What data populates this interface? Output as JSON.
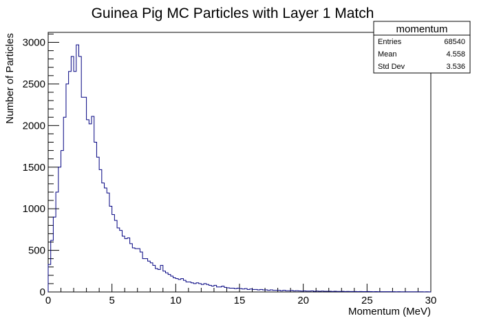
{
  "chart_data": {
    "type": "histogram",
    "title": "Guinea Pig MC Particles with Layer 1 Match",
    "xlabel": "Momentum (MeV)",
    "ylabel": "Number of Particles",
    "xlim": [
      0,
      30
    ],
    "ylim": [
      0,
      3120
    ],
    "bin_width": 0.2,
    "line_color": "#000080",
    "xticks": [
      0,
      5,
      10,
      15,
      20,
      25,
      30
    ],
    "yticks": [
      0,
      500,
      1000,
      1500,
      2000,
      2500,
      3000
    ],
    "stats": {
      "name": "momentum",
      "rows": [
        {
          "label": "Entries",
          "value": "68540"
        },
        {
          "label": "Mean",
          "value": "4.558"
        },
        {
          "label": "Std Dev",
          "value": "3.536"
        }
      ]
    },
    "values": [
      330,
      620,
      900,
      1200,
      1500,
      1700,
      2100,
      2500,
      2650,
      2830,
      2650,
      2970,
      2830,
      2340,
      2340,
      2070,
      2020,
      2110,
      1800,
      1620,
      1470,
      1310,
      1250,
      1190,
      1030,
      930,
      860,
      770,
      740,
      670,
      640,
      650,
      580,
      530,
      520,
      520,
      480,
      400,
      400,
      370,
      350,
      320,
      280,
      270,
      320,
      250,
      230,
      210,
      190,
      170,
      160,
      150,
      160,
      140,
      120,
      120,
      110,
      100,
      110,
      100,
      90,
      100,
      90,
      80,
      70,
      80,
      60,
      60,
      70,
      55,
      50,
      45,
      45,
      40,
      45,
      40,
      35,
      40,
      30,
      35,
      30,
      30,
      25,
      30,
      25,
      25,
      20,
      25,
      20,
      20,
      20,
      15,
      20,
      15,
      15,
      18,
      12,
      15,
      12,
      10,
      12,
      10,
      10,
      12,
      8,
      10,
      8,
      10,
      8,
      8,
      8,
      6,
      8,
      6,
      6,
      7,
      5,
      6,
      5,
      5,
      5,
      4,
      5,
      4,
      4,
      5,
      4,
      3,
      4,
      3,
      3,
      3,
      3,
      3,
      3,
      3,
      2,
      3,
      2,
      2,
      2,
      2,
      2,
      2,
      2,
      2,
      2,
      1,
      2,
      1
    ]
  }
}
